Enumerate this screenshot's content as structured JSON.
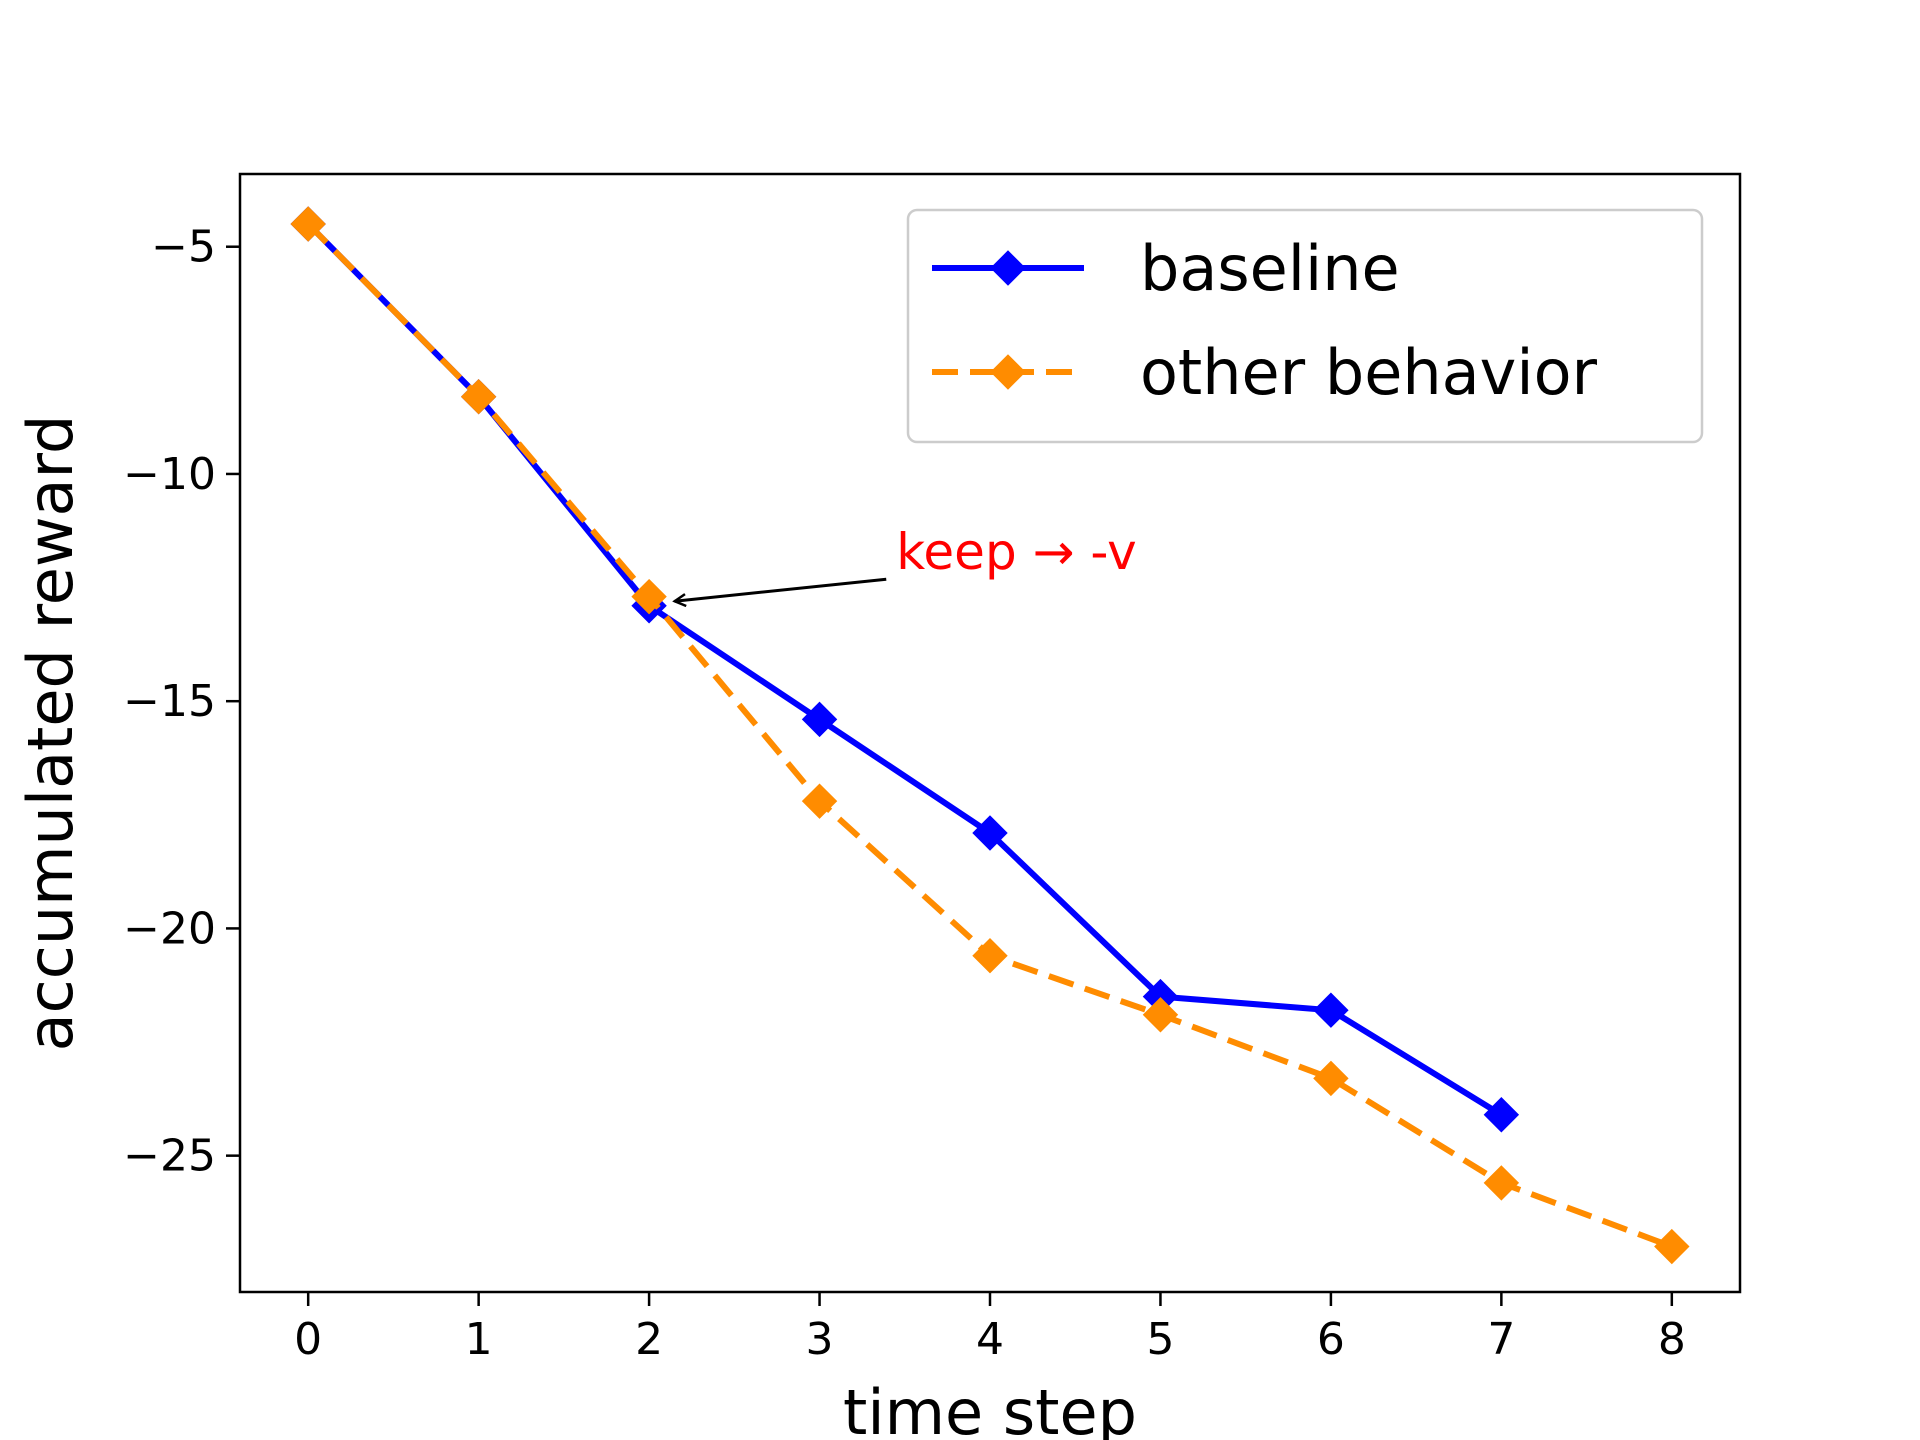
{
  "chart_data": {
    "type": "line",
    "title": "",
    "xlabel": "time step",
    "ylabel": "accumulated reward",
    "xlim": [
      -0.4,
      8.4
    ],
    "ylim": [
      -28.0,
      -3.4
    ],
    "xticks": [
      0,
      1,
      2,
      3,
      4,
      5,
      6,
      7,
      8
    ],
    "yticks": [
      -5,
      -10,
      -15,
      -20,
      -25
    ],
    "ytick_labels": [
      "−5",
      "−10",
      "−15",
      "−20",
      "−25"
    ],
    "legend_position": "top-right",
    "series": [
      {
        "name": "baseline",
        "color": "#0000ff",
        "linestyle": "solid",
        "marker": "diamond",
        "x": [
          0,
          1,
          2,
          3,
          4,
          5,
          6,
          7
        ],
        "y": [
          -4.5,
          -8.3,
          -12.9,
          -15.4,
          -17.9,
          -21.5,
          -21.8,
          -24.1
        ]
      },
      {
        "name": "other behavior",
        "color": "#ff8c00",
        "linestyle": "dashed",
        "marker": "diamond",
        "x": [
          0,
          1,
          2,
          3,
          4,
          5,
          6,
          7,
          8
        ],
        "y": [
          -4.5,
          -8.3,
          -12.7,
          -17.2,
          -20.6,
          -21.9,
          -23.3,
          -25.6,
          -27.0
        ]
      }
    ],
    "annotations": [
      {
        "text": "keep → -v",
        "color": "#ff0000",
        "points_to": {
          "x": 2.15,
          "y": -12.8
        },
        "label_at": {
          "x": 3.45,
          "y": -11.7
        }
      }
    ]
  }
}
